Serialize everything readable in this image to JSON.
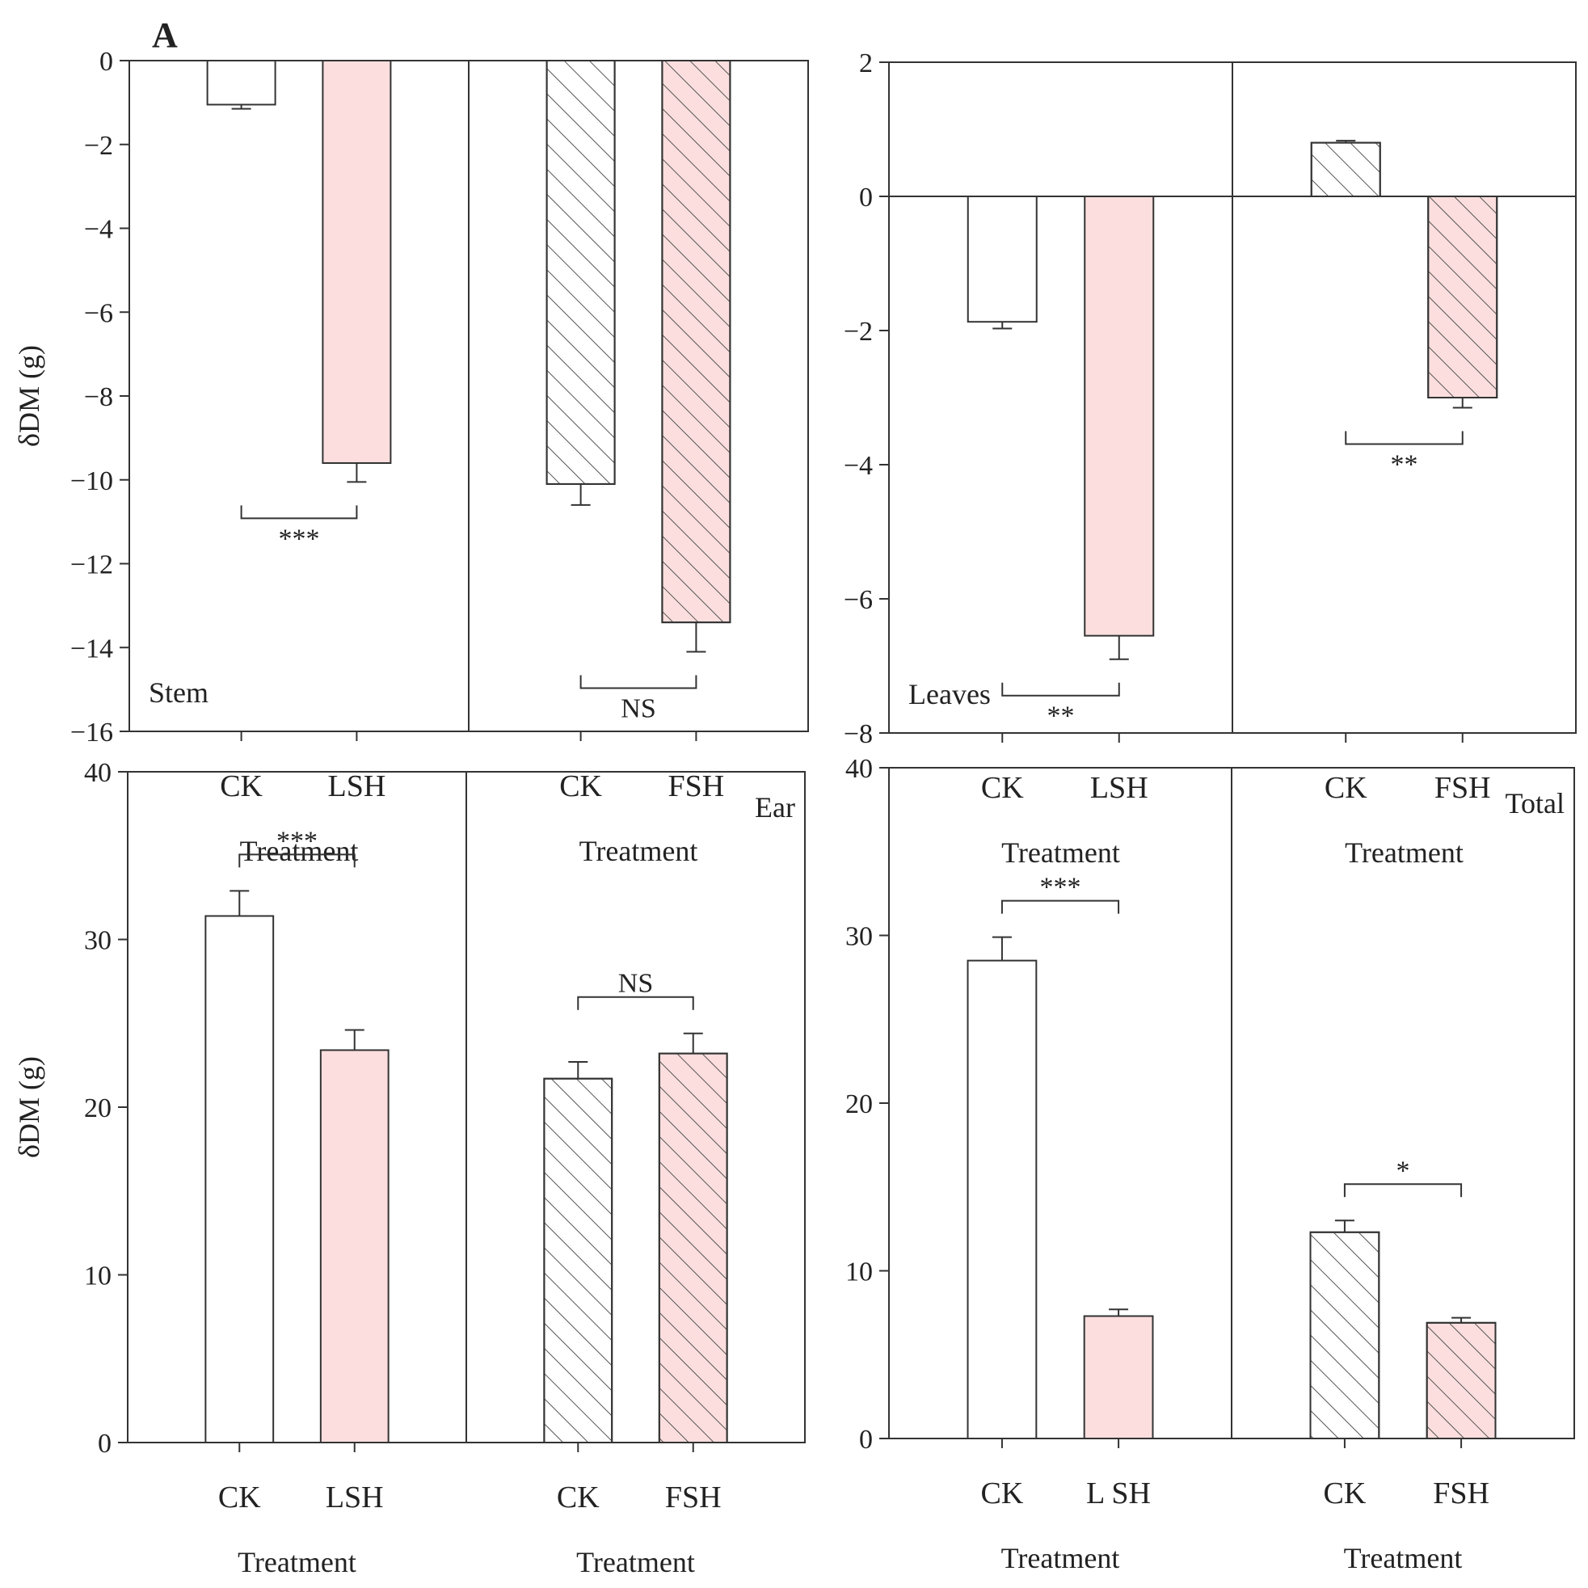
{
  "figure_letter": "A",
  "colors": {
    "ck_fill": "#ffffff",
    "shade_fill": "#fcdede",
    "stroke": "#333333",
    "hatch": "#555555"
  },
  "chart_data": [
    {
      "type": "bar",
      "panel": "Stem",
      "ylabel": "δDM (g)",
      "ylim": [
        -16,
        0
      ],
      "yticks": [
        0,
        -2,
        -4,
        -6,
        -8,
        -10,
        -12,
        -14,
        -16
      ],
      "xlabel": "Treatment",
      "groups": [
        {
          "bars": [
            {
              "category": "CK",
              "value": -1.05,
              "error": 0.1,
              "hatched": false,
              "shaded": false
            },
            {
              "category": "LSH",
              "value": -9.6,
              "error": 0.45,
              "hatched": false,
              "shaded": true
            }
          ],
          "significance": "***",
          "bracket_side": "below"
        },
        {
          "bars": [
            {
              "category": "CK",
              "value": -10.1,
              "error": 0.5,
              "hatched": true,
              "shaded": false
            },
            {
              "category": "FSH",
              "value": -13.4,
              "error": 0.7,
              "hatched": true,
              "shaded": true
            }
          ],
          "significance": "NS",
          "bracket_side": "below"
        }
      ]
    },
    {
      "type": "bar",
      "panel": "Leaves",
      "ylabel": "",
      "ylim": [
        -8,
        2
      ],
      "yticks": [
        2,
        0,
        -2,
        -4,
        -6,
        -8
      ],
      "xlabel": "Treatment",
      "groups": [
        {
          "bars": [
            {
              "category": "CK",
              "value": -1.87,
              "error": 0.1,
              "hatched": false,
              "shaded": false
            },
            {
              "category": "LSH",
              "value": -6.55,
              "error": 0.35,
              "hatched": false,
              "shaded": true
            }
          ],
          "significance": "**",
          "bracket_side": "below"
        },
        {
          "bars": [
            {
              "category": "CK",
              "value": 0.8,
              "error": 0.03,
              "hatched": true,
              "shaded": false
            },
            {
              "category": "FSH",
              "value": -3.0,
              "error": 0.15,
              "hatched": true,
              "shaded": true
            }
          ],
          "significance": "**",
          "bracket_side": "below"
        }
      ]
    },
    {
      "type": "bar",
      "panel": "Ear",
      "ylabel": "δDM (g)",
      "ylim": [
        0,
        40
      ],
      "yticks": [
        40,
        30,
        20,
        10,
        0
      ],
      "xlabel": "Treatment",
      "groups": [
        {
          "bars": [
            {
              "category": "CK",
              "value": 31.4,
              "error": 1.5,
              "hatched": false,
              "shaded": false
            },
            {
              "category": "LSH",
              "value": 23.4,
              "error": 1.2,
              "hatched": false,
              "shaded": true
            }
          ],
          "significance": "***",
          "bracket_side": "above"
        },
        {
          "bars": [
            {
              "category": "CK",
              "value": 21.7,
              "error": 1.0,
              "hatched": true,
              "shaded": false
            },
            {
              "category": "FSH",
              "value": 23.2,
              "error": 1.2,
              "hatched": true,
              "shaded": true
            }
          ],
          "significance": "NS",
          "bracket_side": "above"
        }
      ]
    },
    {
      "type": "bar",
      "panel": "Total",
      "ylabel": "",
      "ylim": [
        0,
        40
      ],
      "yticks": [
        40,
        30,
        20,
        10,
        0
      ],
      "xlabel": "Treatment",
      "groups": [
        {
          "bars": [
            {
              "category": "CK",
              "value": 28.5,
              "error": 1.4,
              "hatched": false,
              "shaded": false
            },
            {
              "category": "L SH",
              "value": 7.3,
              "error": 0.4,
              "hatched": false,
              "shaded": true
            }
          ],
          "significance": "***",
          "bracket_side": "above"
        },
        {
          "bars": [
            {
              "category": "CK",
              "value": 12.3,
              "error": 0.7,
              "hatched": true,
              "shaded": false
            },
            {
              "category": "FSH",
              "value": 6.9,
              "error": 0.3,
              "hatched": true,
              "shaded": true
            }
          ],
          "significance": "*",
          "bracket_side": "above"
        }
      ]
    }
  ]
}
